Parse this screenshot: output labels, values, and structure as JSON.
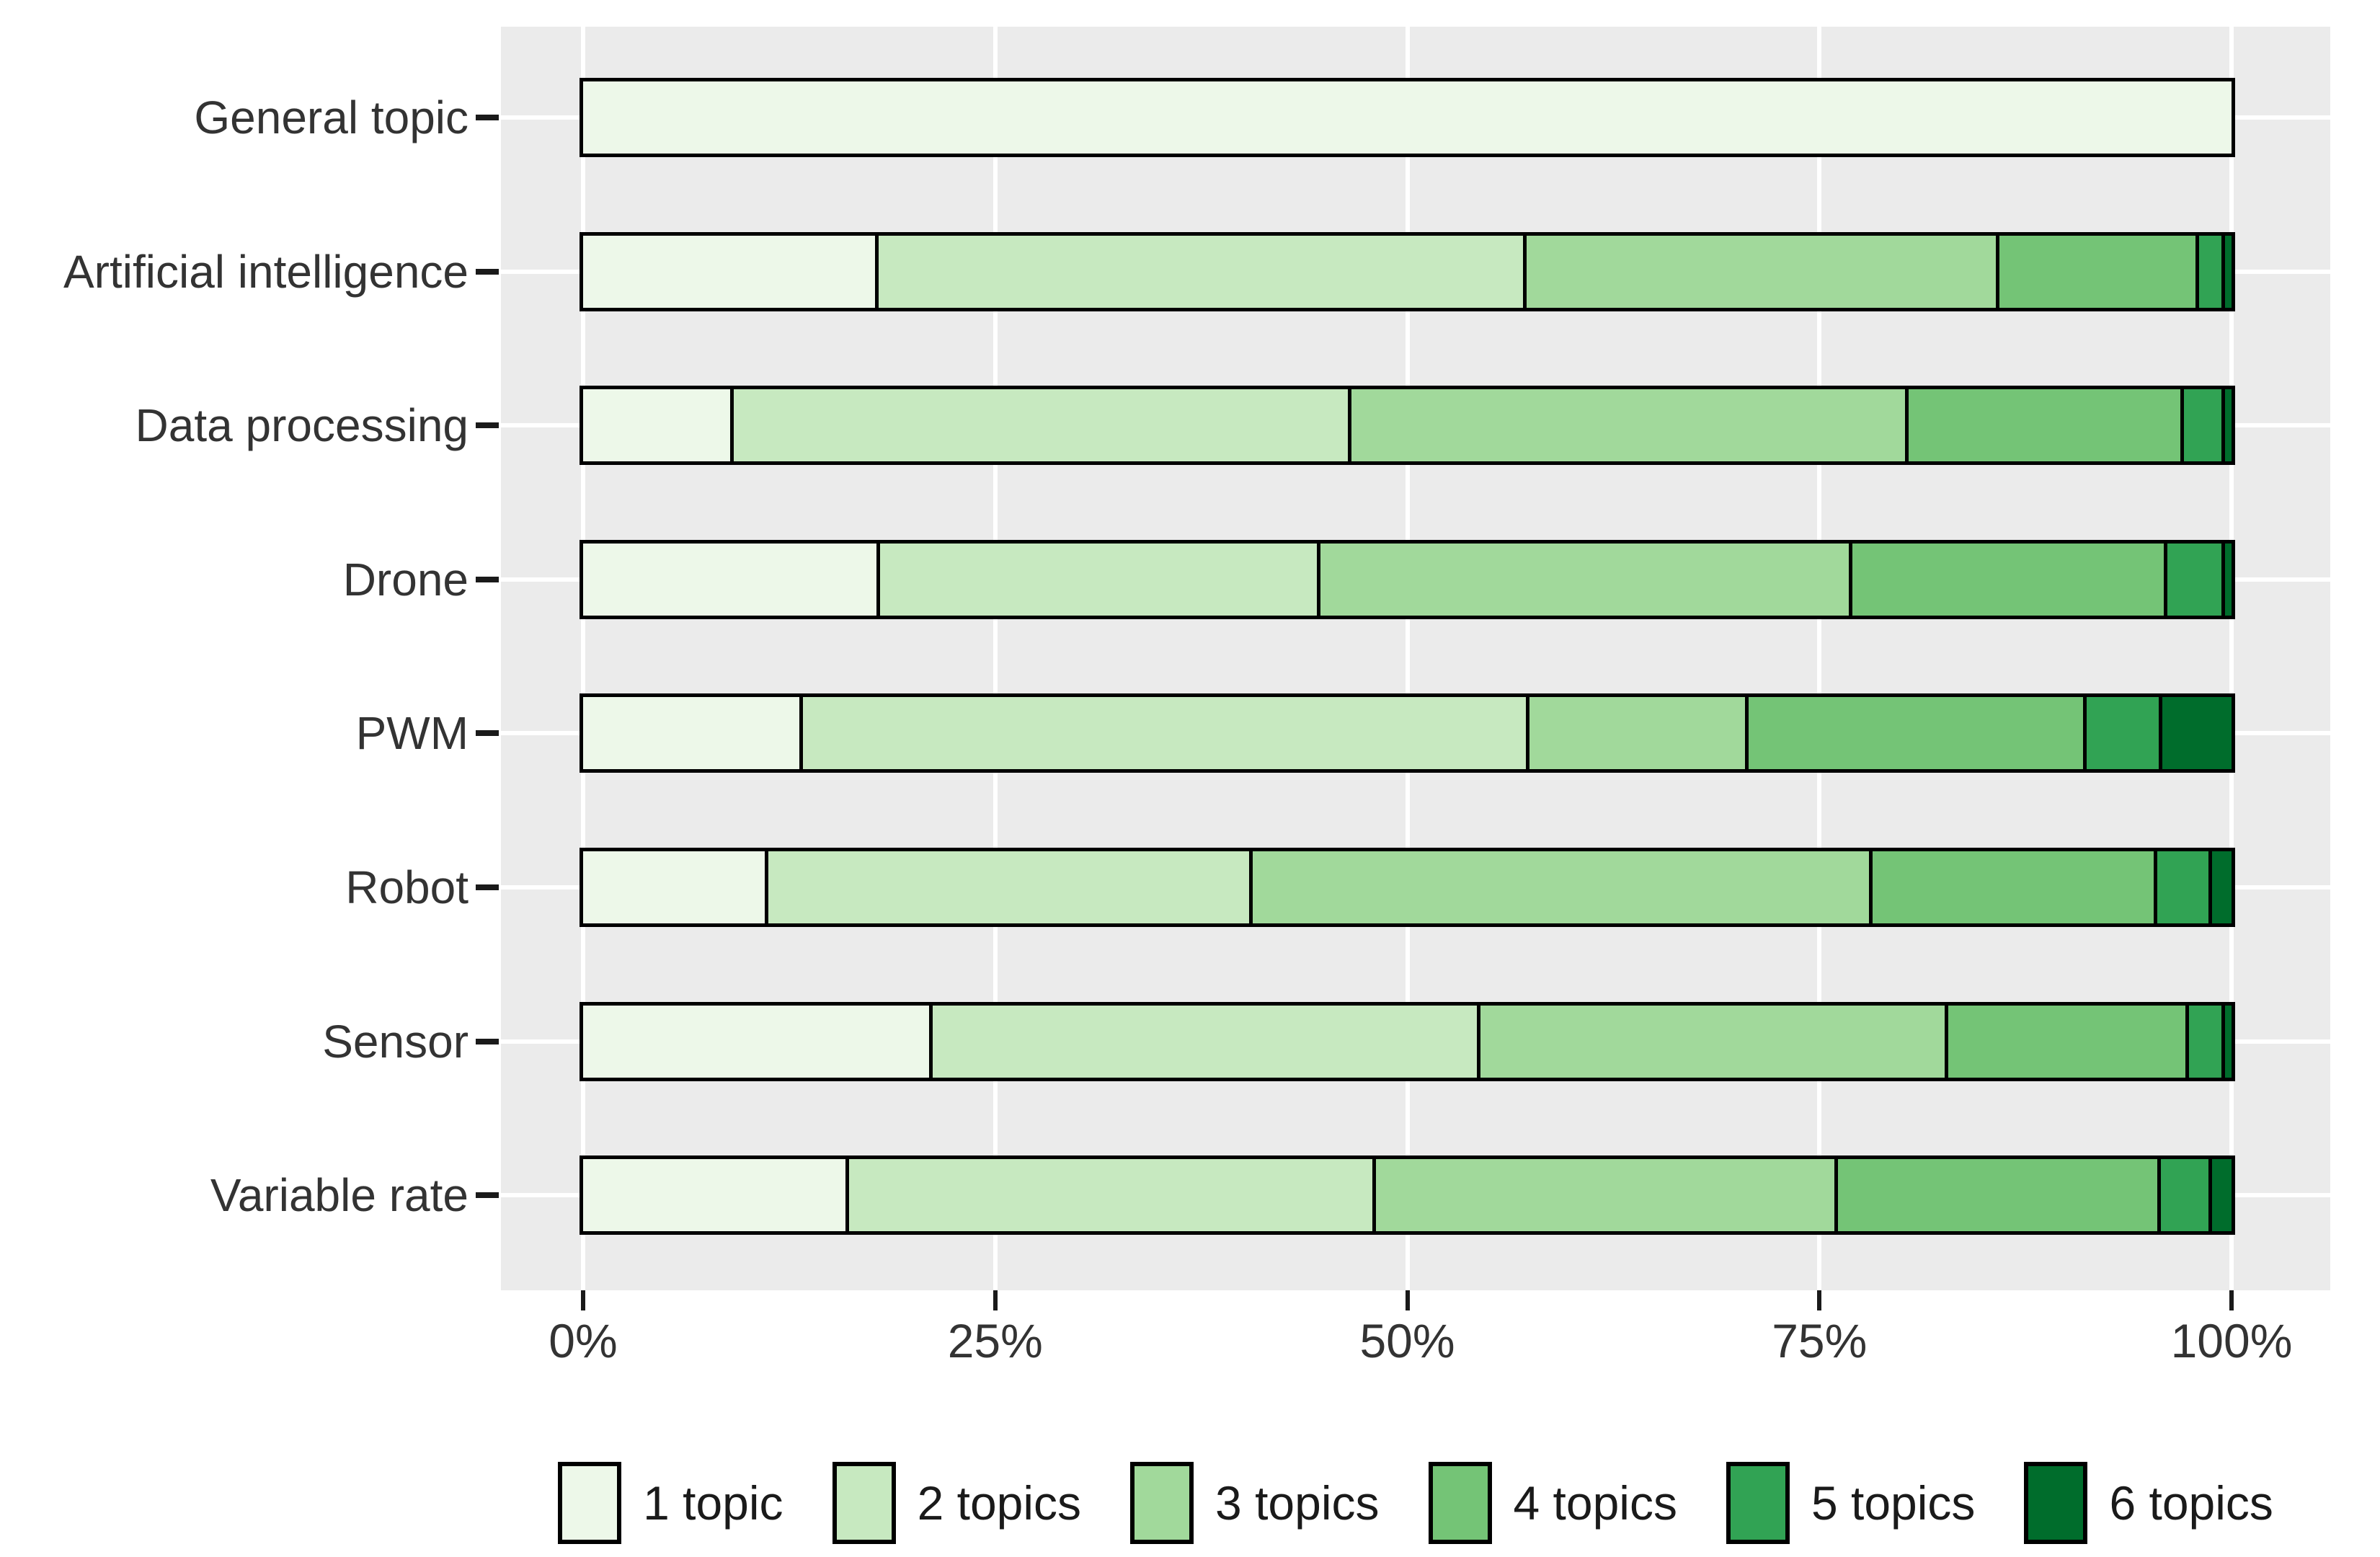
{
  "chart_data": {
    "type": "bar",
    "variant": "horizontal_stacked_percent",
    "title": "",
    "xlabel": "",
    "ylabel": "",
    "xlim": [
      0,
      100
    ],
    "x_ticks": [
      0,
      25,
      50,
      75,
      100
    ],
    "x_tick_labels": [
      "0%",
      "25%",
      "50%",
      "75%",
      "100%"
    ],
    "grid": "on",
    "legend_position": "bottom",
    "categories": [
      "General topic",
      "Artificial intelligence",
      "Data processing",
      "Drone",
      "PWM",
      "Robot",
      "Sensor",
      "Variable rate"
    ],
    "series": [
      {
        "name": "1 topic",
        "color": "#edf8e9",
        "values": [
          100,
          17.7,
          8.9,
          17.8,
          13.1,
          11.0,
          21.0,
          15.9
        ]
      },
      {
        "name": "2 topics",
        "color": "#c7e9c0",
        "values": [
          0,
          39.3,
          37.5,
          26.7,
          44.1,
          29.4,
          33.2,
          32.0
        ]
      },
      {
        "name": "3 topics",
        "color": "#a1d99b",
        "values": [
          0,
          28.7,
          33.8,
          32.3,
          13.3,
          37.6,
          28.4,
          28.0
        ]
      },
      {
        "name": "4 topics",
        "color": "#74c476",
        "values": [
          0,
          12.1,
          16.7,
          19.1,
          20.5,
          17.3,
          14.6,
          19.6
        ]
      },
      {
        "name": "5 topics",
        "color": "#31a354",
        "values": [
          0,
          1.6,
          2.5,
          3.5,
          4.6,
          3.3,
          2.2,
          3.1
        ]
      },
      {
        "name": "6 topics",
        "color": "#006d2c",
        "values": [
          0,
          0.6,
          0.6,
          0.6,
          4.4,
          1.4,
          0.6,
          1.4
        ]
      }
    ],
    "colors": {
      "panel_background": "#ebebeb",
      "gridline": "#ffffff",
      "bar_border": "#000000",
      "axis_text": "#333333"
    }
  }
}
